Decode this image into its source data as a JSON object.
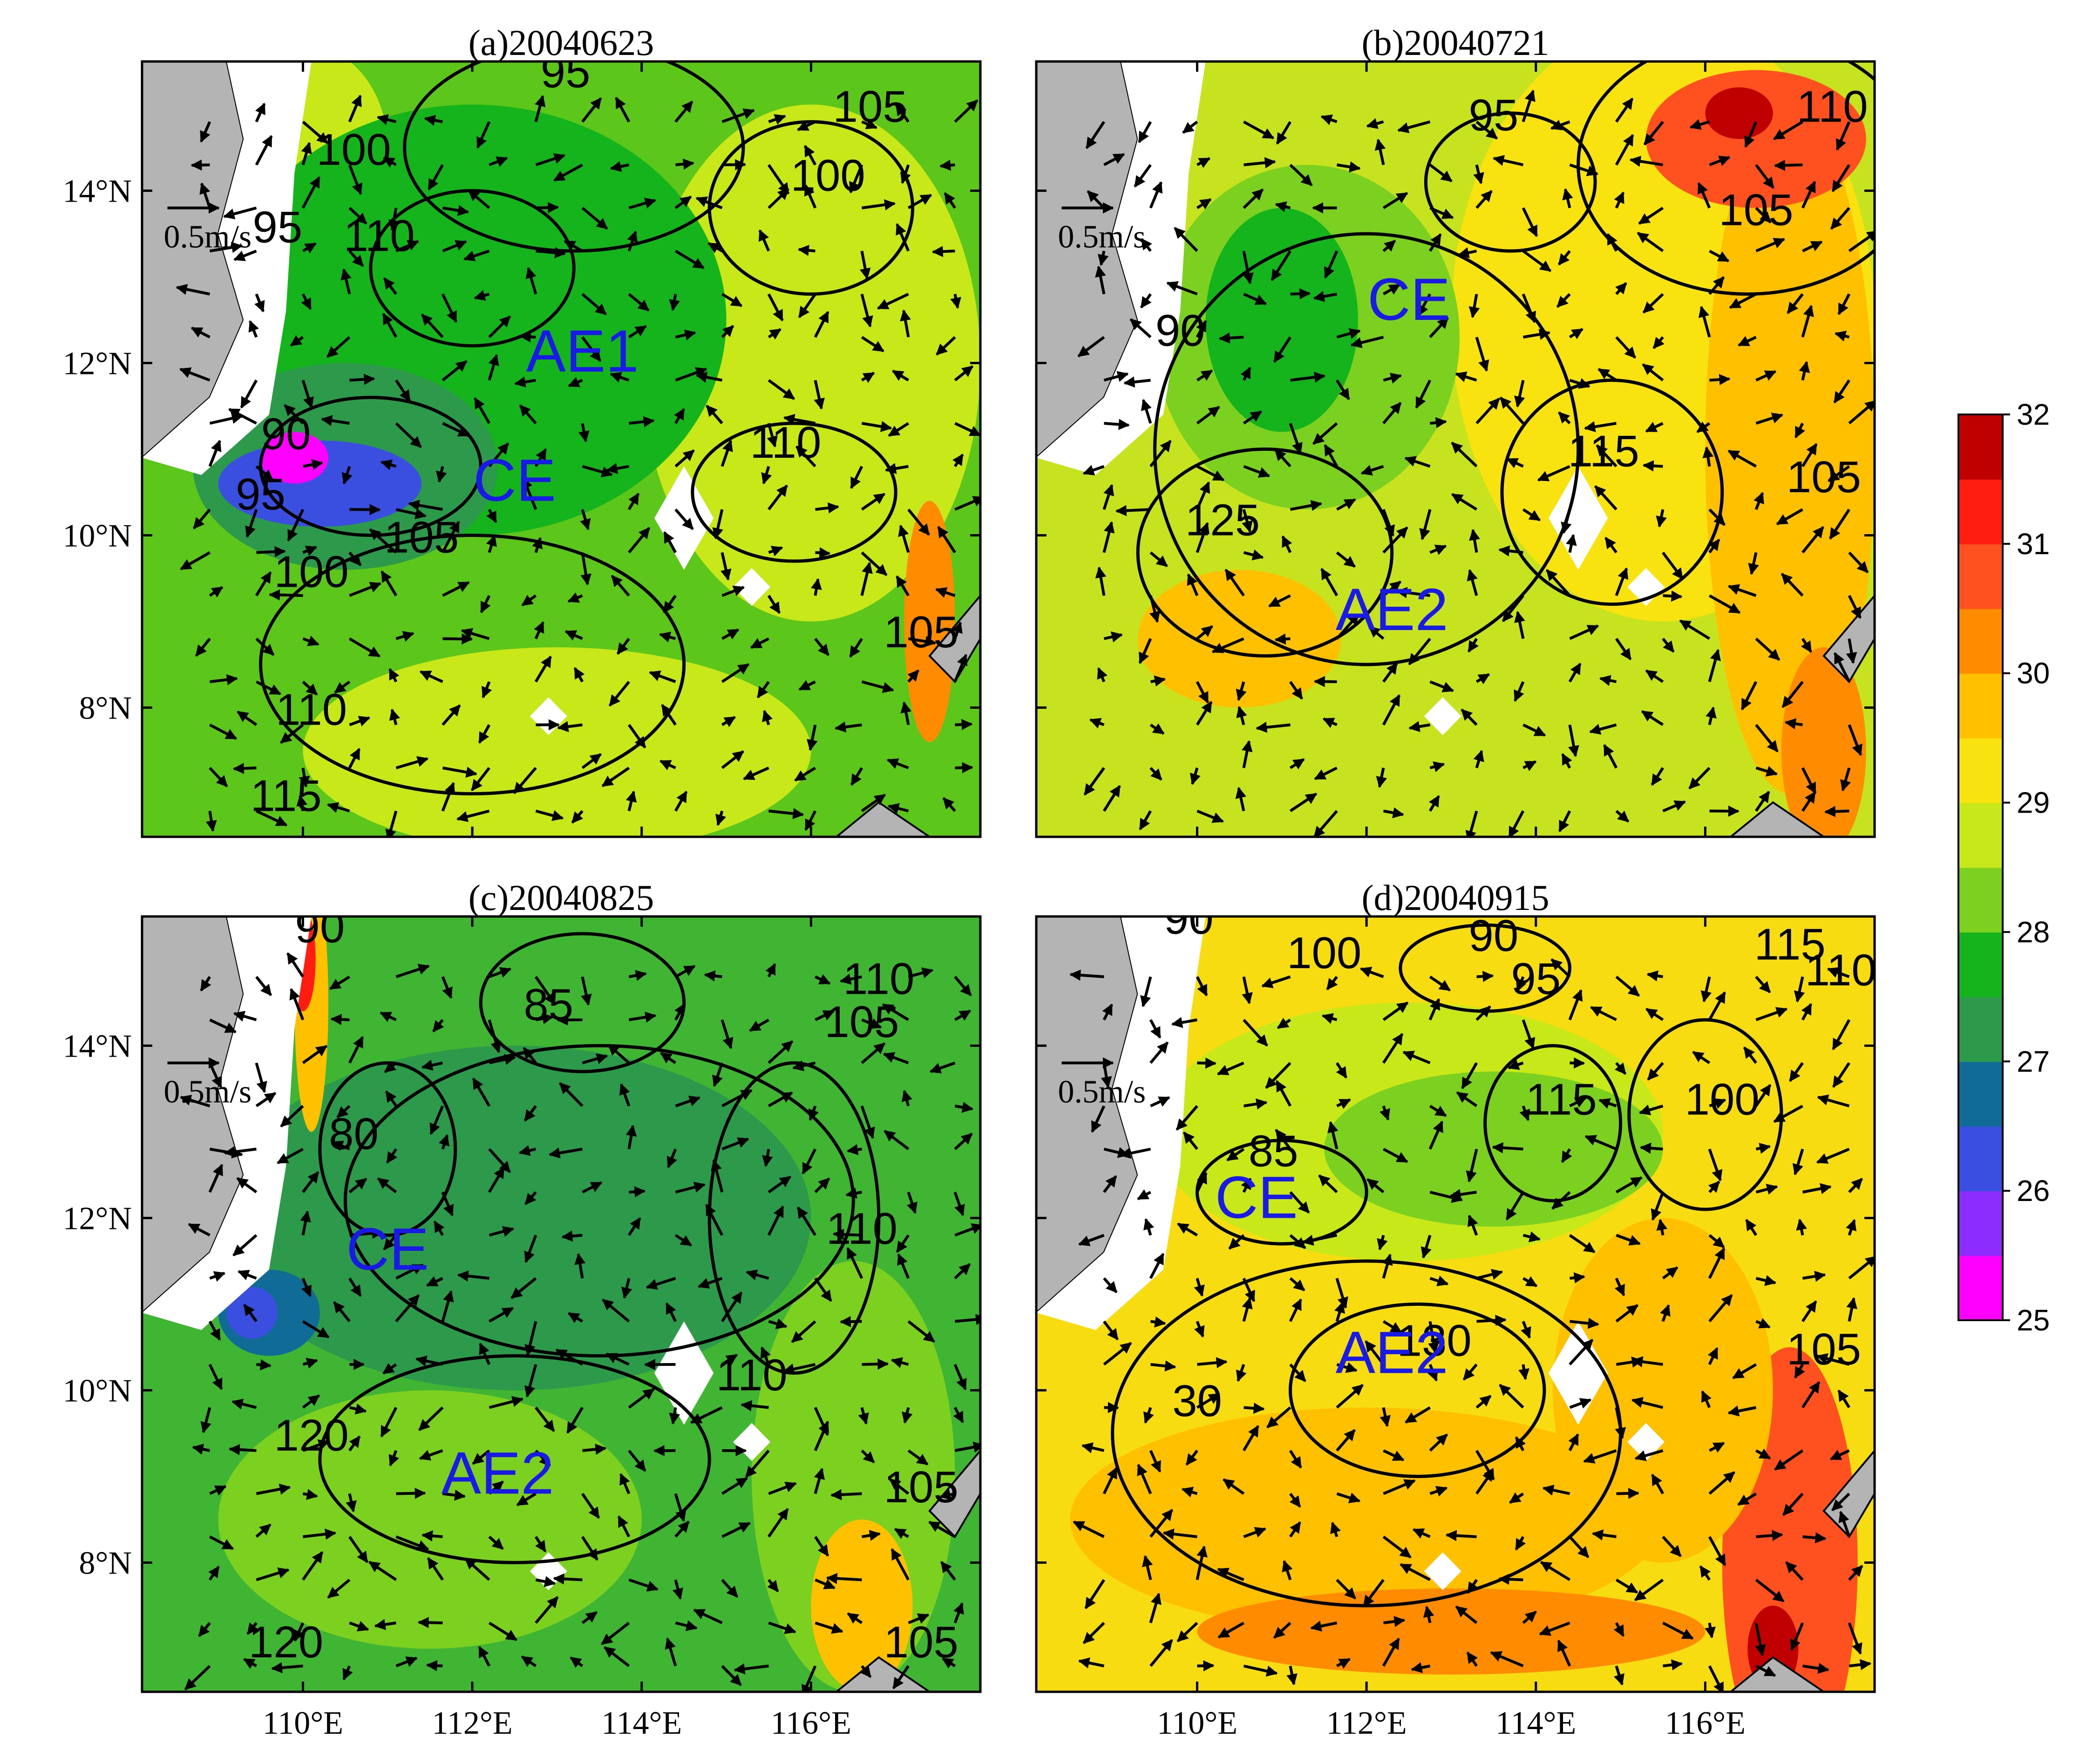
{
  "panels": [
    {
      "title": "(a)20040623",
      "bg": "#5cc61a",
      "labels": [
        {
          "text": "AE1",
          "lon": 113.3,
          "lat": 11.9
        },
        {
          "text": "CE",
          "lon": 112.5,
          "lat": 10.4
        }
      ],
      "contour_labels": [
        {
          "text": "95",
          "lon": 113.1,
          "lat": 15.2
        },
        {
          "text": "105",
          "lon": 116.7,
          "lat": 14.8
        },
        {
          "text": "100",
          "lon": 110.6,
          "lat": 14.3
        },
        {
          "text": "100",
          "lon": 116.2,
          "lat": 14.0
        },
        {
          "text": "95",
          "lon": 109.7,
          "lat": 13.4
        },
        {
          "text": "110",
          "lon": 110.9,
          "lat": 13.3
        },
        {
          "text": "90",
          "lon": 109.8,
          "lat": 11.0
        },
        {
          "text": "95",
          "lon": 109.5,
          "lat": 10.3
        },
        {
          "text": "110",
          "lon": 115.7,
          "lat": 10.9
        },
        {
          "text": "100",
          "lon": 110.1,
          "lat": 9.4
        },
        {
          "text": "105",
          "lon": 111.4,
          "lat": 9.8
        },
        {
          "text": "105",
          "lon": 117.3,
          "lat": 8.7
        },
        {
          "text": "110",
          "lon": 110.1,
          "lat": 7.8
        },
        {
          "text": "115",
          "lon": 109.8,
          "lat": 6.8
        }
      ],
      "ref_vector": "0.5m/s"
    },
    {
      "title": "(b)20040721",
      "bg": "#c7e21f",
      "labels": [
        {
          "text": "CE",
          "lon": 112.5,
          "lat": 12.5
        },
        {
          "text": "AE2",
          "lon": 112.3,
          "lat": 8.9
        }
      ],
      "contour_labels": [
        {
          "text": "95",
          "lon": 113.5,
          "lat": 14.7
        },
        {
          "text": "110",
          "lon": 117.5,
          "lat": 14.8
        },
        {
          "text": "105",
          "lon": 116.6,
          "lat": 13.6
        },
        {
          "text": "90",
          "lon": 109.8,
          "lat": 12.2
        },
        {
          "text": "115",
          "lon": 114.8,
          "lat": 10.8
        },
        {
          "text": "105",
          "lon": 117.4,
          "lat": 10.5
        },
        {
          "text": "125",
          "lon": 110.3,
          "lat": 10.0
        }
      ],
      "ref_vector": "0.5m/s"
    },
    {
      "title": "(c)20040825",
      "bg": "#3fb533",
      "labels": [
        {
          "text": "CE",
          "lon": 111.0,
          "lat": 11.4
        },
        {
          "text": "AE2",
          "lon": 112.3,
          "lat": 8.8
        }
      ],
      "contour_labels": [
        {
          "text": "90",
          "lon": 110.2,
          "lat": 15.2
        },
        {
          "text": "85",
          "lon": 112.9,
          "lat": 14.3
        },
        {
          "text": "110",
          "lon": 116.8,
          "lat": 14.6
        },
        {
          "text": "105",
          "lon": 116.6,
          "lat": 14.1
        },
        {
          "text": "80",
          "lon": 110.6,
          "lat": 12.8
        },
        {
          "text": "110",
          "lon": 116.6,
          "lat": 11.7
        },
        {
          "text": "110",
          "lon": 115.3,
          "lat": 10.0
        },
        {
          "text": "120",
          "lon": 110.1,
          "lat": 9.3
        },
        {
          "text": "105",
          "lon": 117.3,
          "lat": 8.7
        },
        {
          "text": "105",
          "lon": 117.3,
          "lat": 6.9
        },
        {
          "text": "120",
          "lon": 109.8,
          "lat": 6.9
        }
      ],
      "ref_vector": "0.5m/s"
    },
    {
      "title": "(d)20040915",
      "bg": "#f6dc10",
      "labels": [
        {
          "text": "CE",
          "lon": 110.7,
          "lat": 12.0
        },
        {
          "text": "AE2",
          "lon": 112.3,
          "lat": 10.2
        }
      ],
      "contour_labels": [
        {
          "text": "90",
          "lon": 109.9,
          "lat": 15.3
        },
        {
          "text": "100",
          "lon": 111.5,
          "lat": 14.9
        },
        {
          "text": "90",
          "lon": 113.5,
          "lat": 15.1
        },
        {
          "text": "95",
          "lon": 114.0,
          "lat": 14.6
        },
        {
          "text": "115",
          "lon": 117.0,
          "lat": 15.0
        },
        {
          "text": "110",
          "lon": 117.6,
          "lat": 14.7
        },
        {
          "text": "115",
          "lon": 114.3,
          "lat": 13.2
        },
        {
          "text": "100",
          "lon": 116.2,
          "lat": 13.2
        },
        {
          "text": "85",
          "lon": 110.9,
          "lat": 12.6
        },
        {
          "text": "130",
          "lon": 112.8,
          "lat": 10.4
        },
        {
          "text": "30",
          "lon": 110.0,
          "lat": 9.7
        },
        {
          "text": "105",
          "lon": 117.4,
          "lat": 10.3
        }
      ],
      "ref_vector": "0.5m/s"
    }
  ],
  "axes": {
    "lon_ticks": [
      110,
      112,
      114,
      116
    ],
    "lat_ticks": [
      8,
      10,
      12,
      14
    ],
    "lon_labels": [
      "110°E",
      "112°E",
      "114°E",
      "116°E"
    ],
    "lat_labels": [
      "8°N",
      "10°N",
      "12°N",
      "14°N"
    ],
    "lon_range": [
      108.1,
      118.0
    ],
    "lat_range": [
      6.5,
      15.5
    ]
  },
  "colorbar": {
    "ticks": [
      "25",
      "26",
      "27",
      "28",
      "29",
      "30",
      "31",
      "32"
    ],
    "colors": [
      "#ff00ff",
      "#8c2cff",
      "#3a4ee0",
      "#106c96",
      "#2c9a4a",
      "#16b41c",
      "#7cd020",
      "#c8e81a",
      "#f8e210",
      "#ffc000",
      "#ff8c00",
      "#ff5020",
      "#ff1c10",
      "#c00000"
    ]
  }
}
